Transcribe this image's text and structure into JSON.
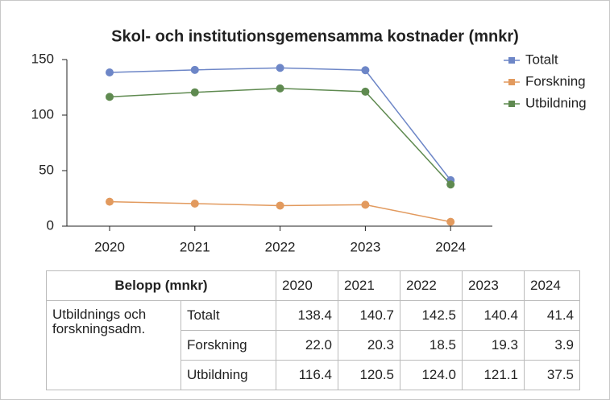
{
  "chart_data": {
    "type": "line",
    "title": "Skol- och institutionsgemensamma kostnader (mnkr)",
    "categories": [
      "2020",
      "2021",
      "2022",
      "2023",
      "2024"
    ],
    "series": [
      {
        "name": "Totalt",
        "color": "#6d86c7",
        "values": [
          138.4,
          140.7,
          142.5,
          140.4,
          41.4
        ],
        "value_labels": [
          "138.4",
          "140.7",
          "142.5",
          "140.4",
          "41.4"
        ]
      },
      {
        "name": "Forskning",
        "color": "#e29a5e",
        "values": [
          22.0,
          20.3,
          18.5,
          19.3,
          3.9
        ],
        "value_labels": [
          "22.0",
          "20.3",
          "18.5",
          "19.3",
          "3.9"
        ]
      },
      {
        "name": "Utbildning",
        "color": "#5f8a50",
        "values": [
          116.4,
          120.5,
          124.0,
          121.1,
          37.5
        ],
        "value_labels": [
          "116.4",
          "120.5",
          "124.0",
          "121.1",
          "37.5"
        ]
      }
    ],
    "ylim": [
      0,
      150
    ],
    "yticks": [
      0,
      50,
      100,
      150
    ],
    "grid": false,
    "legend": "right"
  },
  "table": {
    "header": "Belopp (mnkr)",
    "group": "Utbildnings och forskningsadm."
  }
}
